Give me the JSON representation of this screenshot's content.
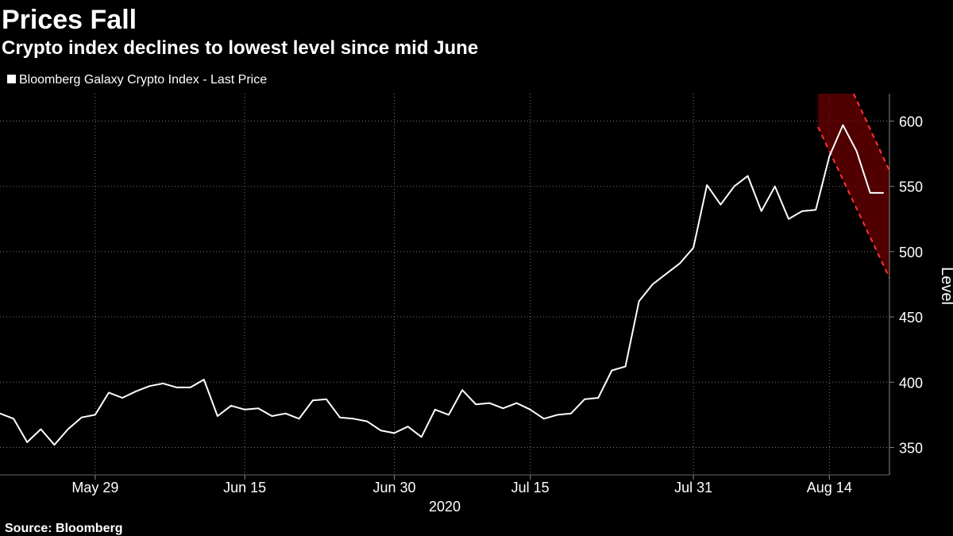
{
  "chart_data": {
    "type": "line",
    "title": "Prices Fall",
    "subtitle": "Crypto index declines to lowest level since mid June",
    "source": "Source: Bloomberg",
    "y_axis_label": "Level",
    "x_axis_sublabel": "2020",
    "categories": [
      null,
      null,
      null,
      null,
      null,
      null,
      null,
      "May 29",
      null,
      null,
      null,
      null,
      null,
      null,
      null,
      null,
      null,
      null,
      "Jun 15",
      null,
      null,
      null,
      null,
      null,
      null,
      null,
      null,
      null,
      null,
      "Jun 30",
      null,
      null,
      null,
      null,
      null,
      null,
      null,
      null,
      null,
      "Jul 15",
      null,
      null,
      null,
      null,
      null,
      null,
      null,
      null,
      null,
      null,
      null,
      "Jul 31",
      null,
      null,
      null,
      null,
      null,
      null,
      null,
      null,
      null,
      "Aug 14",
      null,
      null,
      null,
      null
    ],
    "series": [
      {
        "name": "Bloomberg Galaxy Crypto Index - Last Price",
        "color": "#ffffff",
        "values": [
          376,
          372,
          354,
          364,
          352,
          364,
          373,
          375,
          392,
          388,
          393,
          397,
          399,
          396,
          396,
          402,
          374,
          382,
          379,
          380,
          374,
          376,
          372,
          386,
          387,
          373,
          372,
          370,
          363,
          361,
          366,
          358,
          379,
          375,
          394,
          383,
          384,
          380,
          384,
          379,
          372,
          375,
          376,
          387,
          388,
          409,
          412,
          462,
          475,
          483,
          491,
          503,
          551,
          536,
          550,
          558,
          531,
          550,
          525,
          531,
          532,
          573,
          597,
          577,
          545,
          545
        ]
      }
    ],
    "ylim": [
      329,
      621
    ],
    "yticks": [
      350,
      400,
      450,
      500,
      550,
      600
    ],
    "grid": true
  }
}
